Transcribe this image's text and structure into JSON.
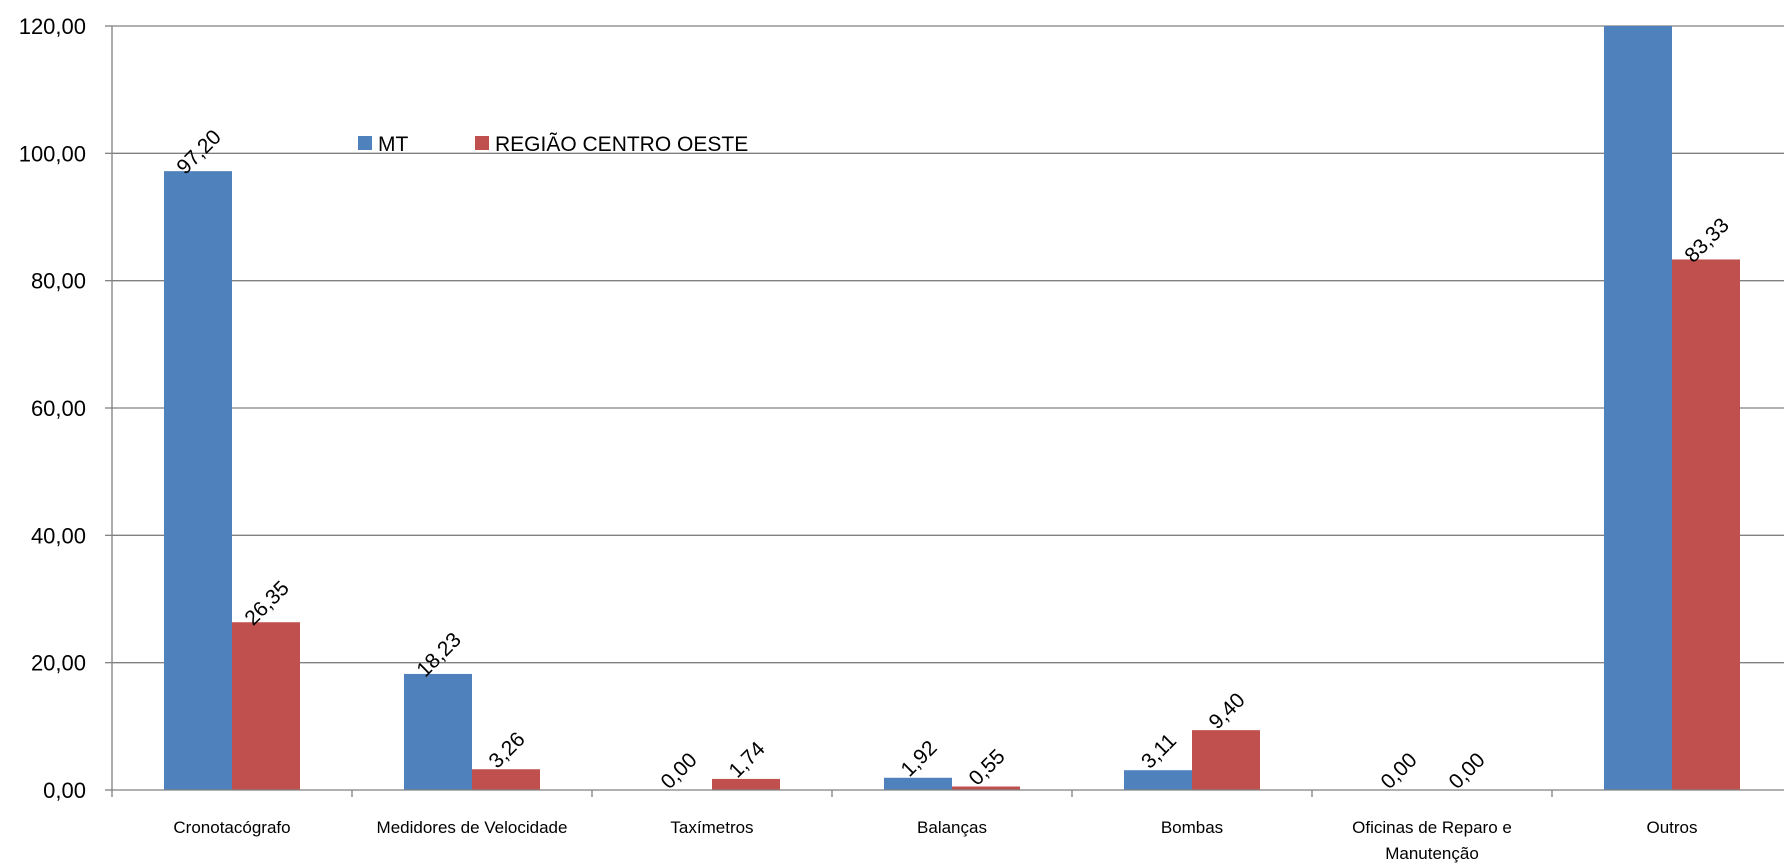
{
  "chart_data": {
    "type": "bar",
    "title": "",
    "xlabel": "",
    "ylabel": "",
    "ylim": [
      0,
      120
    ],
    "grid": true,
    "legend_position": "top-left",
    "y_ticks": [
      "0,00",
      "20,00",
      "40,00",
      "60,00",
      "80,00",
      "100,00",
      "120,00"
    ],
    "categories": [
      [
        "Cronotacógrafo"
      ],
      [
        "Medidores de Velocidade"
      ],
      [
        "Taxímetros"
      ],
      [
        "Balanças"
      ],
      [
        "Bombas"
      ],
      [
        "Oficinas de Reparo e",
        "Manutenção"
      ],
      [
        "Outros"
      ]
    ],
    "series": [
      {
        "name": "MT",
        "color": "#4F81BD",
        "values": [
          97.2,
          18.23,
          0.0,
          1.92,
          3.11,
          0.0,
          120.0
        ],
        "labels": [
          "97,20",
          "18,23",
          "0,00",
          "1,92",
          "3,11",
          "0,00",
          null
        ]
      },
      {
        "name": "REGIÃO CENTRO OESTE",
        "color": "#C0504D",
        "values": [
          26.35,
          3.26,
          1.74,
          0.55,
          9.4,
          0.0,
          83.33
        ],
        "labels": [
          "26,35",
          "3,26",
          "1,74",
          "0,55",
          "9,40",
          "0,00",
          "83,33"
        ]
      }
    ],
    "gridline_color": "#808080",
    "axis_color": "#808080"
  }
}
